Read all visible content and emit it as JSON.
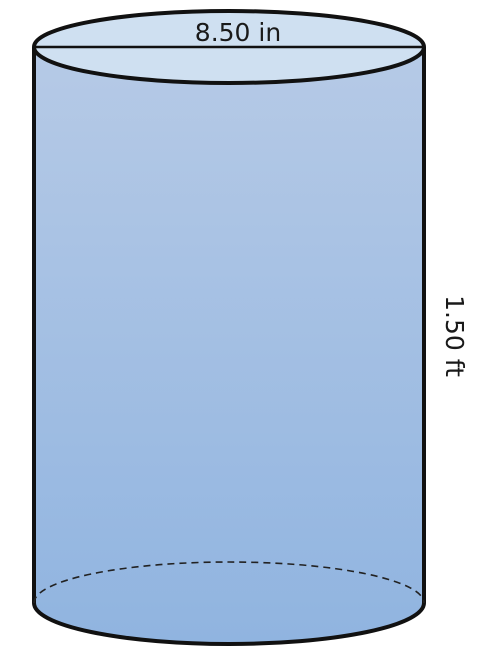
{
  "diagram": {
    "diameter_label": "8.50 in",
    "height_label": "1.50 ft"
  },
  "colors": {
    "body_top": "#b6cae6",
    "body_bottom": "#90b4e0",
    "top_face": "#cfe0f1",
    "outline": "#111111"
  }
}
